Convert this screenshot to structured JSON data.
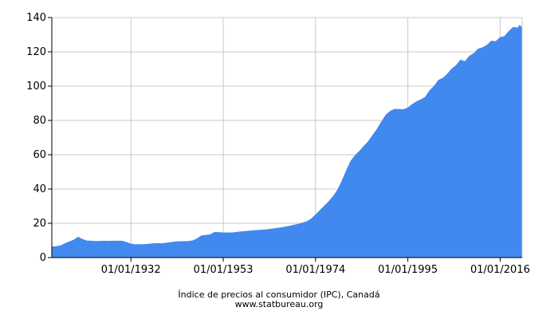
{
  "chart_data": {
    "type": "area",
    "title": "Índice de precios al consumidor (IPC), Canadá",
    "source": "www.statbureau.org",
    "xlabel": "",
    "ylabel": "",
    "xlim": [
      "1914-01-01",
      "2021-01-01"
    ],
    "ylim": [
      0,
      140
    ],
    "y_ticks": [
      0,
      20,
      40,
      60,
      80,
      100,
      120,
      140
    ],
    "x_ticks": [
      "1932-01-01",
      "1953-01-01",
      "1974-01-01",
      "1995-01-01",
      "2016-01-01"
    ],
    "x_tick_labels": [
      "01/01/1932",
      "01/01/1953",
      "01/01/1974",
      "01/01/1995",
      "01/01/2016"
    ],
    "grid": true,
    "legend": "none",
    "color": "#4189ee",
    "series": [
      {
        "x": [
          "1914-01-01",
          "1915-01-01",
          "1916-01-01",
          "1917-01-01",
          "1918-01-01",
          "1919-01-01",
          "1920-01-01",
          "1921-01-01",
          "1922-01-01",
          "1923-01-01",
          "1924-01-01",
          "1925-01-01",
          "1926-01-01",
          "1927-01-01",
          "1928-01-01",
          "1929-01-01",
          "1930-01-01",
          "1931-01-01",
          "1932-01-01",
          "1933-01-01",
          "1934-01-01",
          "1935-01-01",
          "1936-01-01",
          "1937-01-01",
          "1938-01-01",
          "1939-01-01",
          "1940-01-01",
          "1941-01-01",
          "1942-01-01",
          "1943-01-01",
          "1944-01-01",
          "1945-01-01",
          "1946-01-01",
          "1947-01-01",
          "1948-01-01",
          "1949-01-01",
          "1950-01-01",
          "1951-01-01",
          "1952-01-01",
          "1953-01-01",
          "1955-01-01",
          "1957-01-01",
          "1960-01-01",
          "1963-01-01",
          "1966-01-01",
          "1968-01-01",
          "1970-01-01",
          "1972-01-01",
          "1973-01-01",
          "1974-01-01",
          "1975-01-01",
          "1976-01-01",
          "1977-01-01",
          "1978-01-01",
          "1979-01-01",
          "1980-01-01",
          "1981-01-01",
          "1982-01-01",
          "1983-01-01",
          "1984-01-01",
          "1985-01-01",
          "1986-01-01",
          "1987-01-01",
          "1988-01-01",
          "1989-01-01",
          "1990-01-01",
          "1991-01-01",
          "1992-01-01",
          "1993-01-01",
          "1994-01-01",
          "1995-01-01",
          "1996-01-01",
          "1997-01-01",
          "1998-01-01",
          "1999-01-01",
          "2000-01-01",
          "2001-01-01",
          "2002-01-01",
          "2003-01-01",
          "2004-01-01",
          "2005-01-01",
          "2006-01-01",
          "2007-01-01",
          "2008-01-01",
          "2009-01-01",
          "2010-01-01",
          "2011-01-01",
          "2012-01-01",
          "2013-01-01",
          "2014-01-01",
          "2015-01-01",
          "2016-01-01",
          "2017-01-01",
          "2018-01-01",
          "2019-01-01",
          "2020-01-01",
          "2020-06-01",
          "2021-01-01"
        ],
        "y": [
          6.2,
          6.4,
          6.9,
          8.1,
          9.2,
          10.2,
          11.9,
          10.5,
          9.7,
          9.6,
          9.4,
          9.5,
          9.6,
          9.5,
          9.6,
          9.6,
          9.6,
          8.8,
          7.9,
          7.5,
          7.6,
          7.6,
          7.8,
          8.1,
          8.2,
          8.1,
          8.4,
          8.8,
          9.1,
          9.3,
          9.3,
          9.4,
          9.7,
          10.9,
          12.6,
          13.0,
          13.3,
          14.7,
          14.6,
          14.4,
          14.4,
          15.0,
          15.7,
          16.3,
          17.3,
          18.3,
          19.4,
          20.9,
          22.4,
          24.8,
          27.4,
          30.0,
          32.6,
          35.6,
          39.2,
          44.5,
          50.4,
          56.2,
          59.5,
          62.0,
          64.9,
          67.6,
          71.2,
          74.8,
          79.1,
          83.1,
          85.3,
          86.5,
          86.4,
          86.3,
          87.2,
          89.3,
          90.9,
          92.1,
          93.6,
          97.4,
          99.9,
          103.4,
          104.6,
          107.0,
          110.0,
          112.0,
          115.2,
          114.3,
          117.4,
          119.0,
          121.6,
          122.4,
          123.8,
          126.3,
          126.0,
          128.3,
          129.0,
          131.9,
          134.3,
          133.8,
          135.4,
          134.0
        ]
      }
    ]
  }
}
